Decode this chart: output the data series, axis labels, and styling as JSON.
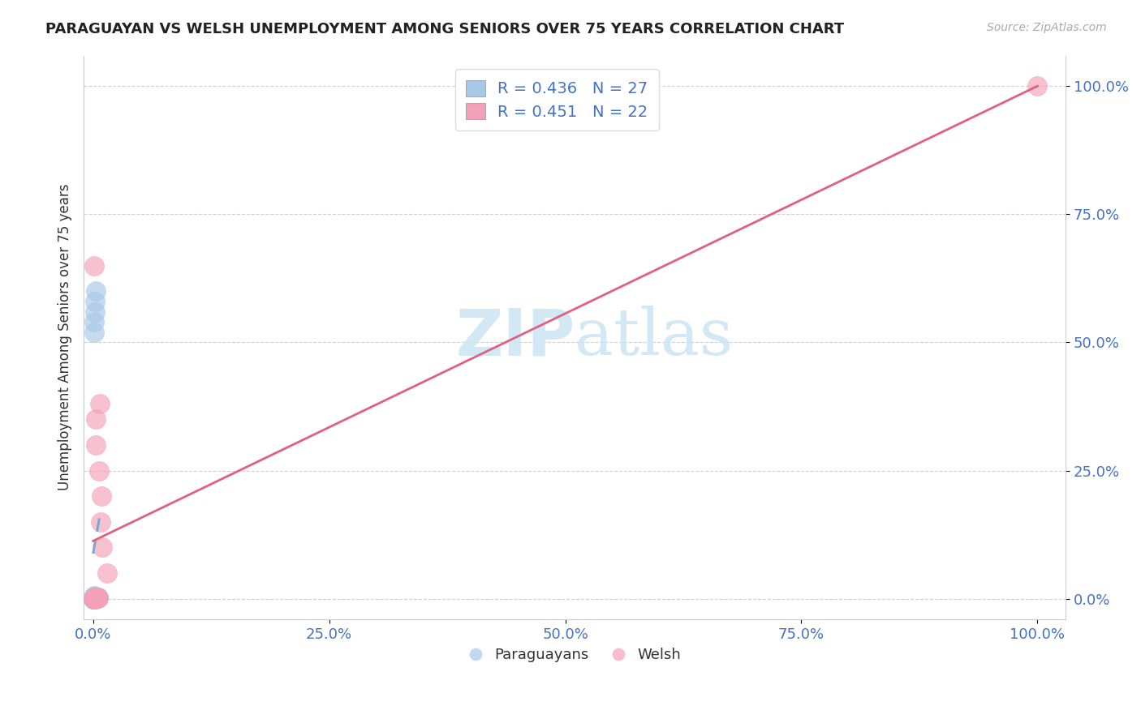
{
  "title": "PARAGUAYAN VS WELSH UNEMPLOYMENT AMONG SENIORS OVER 75 YEARS CORRELATION CHART",
  "source": "Source: ZipAtlas.com",
  "ylabel": "Unemployment Among Seniors over 75 years",
  "paraguayan_R": 0.436,
  "paraguayan_N": 27,
  "welsh_R": 0.451,
  "welsh_N": 22,
  "blue_color": "#a8c8e8",
  "pink_color": "#f4a0b8",
  "blue_line_color": "#6aaad4",
  "pink_line_color": "#e06080",
  "watermark_color": "#cce4f4",
  "paraguayan_x": [
    0.0,
    0.0,
    0.0,
    0.0,
    0.0,
    0.001,
    0.001,
    0.001,
    0.001,
    0.001,
    0.001,
    0.001,
    0.001,
    0.001,
    0.002,
    0.002,
    0.002,
    0.002,
    0.002,
    0.002,
    0.002,
    0.003,
    0.003,
    0.003,
    0.004,
    0.004,
    0.005
  ],
  "paraguayan_y": [
    0.0,
    0.0,
    0.001,
    0.001,
    0.002,
    0.0,
    0.001,
    0.001,
    0.002,
    0.003,
    0.004,
    0.005,
    0.52,
    0.54,
    0.0,
    0.001,
    0.002,
    0.003,
    0.004,
    0.56,
    0.58,
    0.001,
    0.002,
    0.6,
    0.002,
    0.003,
    0.003
  ],
  "welsh_x": [
    0.0,
    0.001,
    0.001,
    0.001,
    0.002,
    0.002,
    0.002,
    0.003,
    0.003,
    0.003,
    0.003,
    0.004,
    0.004,
    0.005,
    0.005,
    0.006,
    0.007,
    0.008,
    0.009,
    0.01,
    0.015,
    1.0
  ],
  "welsh_y": [
    0.0,
    0.001,
    0.002,
    0.65,
    0.001,
    0.002,
    0.003,
    0.0,
    0.001,
    0.3,
    0.35,
    0.002,
    0.003,
    0.001,
    0.002,
    0.25,
    0.38,
    0.15,
    0.2,
    0.1,
    0.05,
    1.0
  ],
  "xlim": [
    0.0,
    1.0
  ],
  "ylim": [
    0.0,
    1.0
  ],
  "xticks": [
    0.0,
    0.25,
    0.5,
    0.75,
    1.0
  ],
  "yticks": [
    0.0,
    0.25,
    0.5,
    0.75,
    1.0
  ],
  "tick_labels": [
    "0.0%",
    "25.0%",
    "50.0%",
    "75.0%",
    "100.0%"
  ]
}
